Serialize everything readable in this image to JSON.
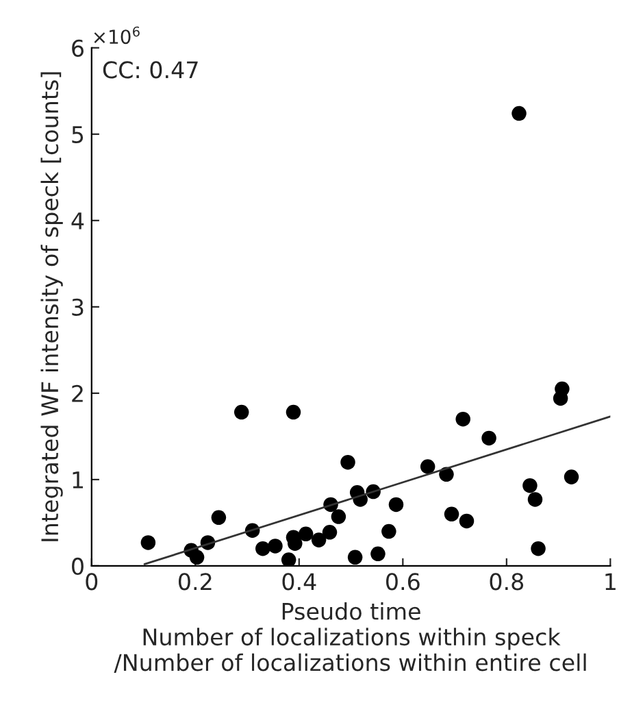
{
  "chart_data": {
    "type": "scatter",
    "xlabel": "Pseudo time\nNumber of localizations within speck\n/Number of localizations within entire cell",
    "ylabel": "Integrated WF intensity of speck [counts]",
    "annotations": [
      "×10$^{6}$",
      "CC: 0.47"
    ],
    "xlim": [
      0,
      1
    ],
    "ylim": [
      0,
      6
    ],
    "xticks": [
      0,
      0.2,
      0.4,
      0.6,
      0.8,
      1
    ],
    "yticks": [
      0,
      1,
      2,
      3,
      4,
      5,
      6
    ],
    "grid": false,
    "marker": "circle",
    "series": [
      {
        "color": "#000000",
        "x": [
          0.109,
          0.192,
          0.203,
          0.224,
          0.245,
          0.289,
          0.31,
          0.33,
          0.354,
          0.38,
          0.389,
          0.389,
          0.392,
          0.413,
          0.438,
          0.459,
          0.461,
          0.476,
          0.494,
          0.508,
          0.512,
          0.518,
          0.543,
          0.552,
          0.573,
          0.587,
          0.648,
          0.684,
          0.694,
          0.716,
          0.723,
          0.766,
          0.824,
          0.845,
          0.855,
          0.861,
          0.904,
          0.907,
          0.925
        ],
        "values": [
          0.27,
          0.18,
          0.1,
          0.27,
          0.56,
          1.78,
          0.41,
          0.2,
          0.23,
          0.07,
          1.78,
          0.33,
          0.26,
          0.37,
          0.3,
          0.39,
          0.71,
          0.57,
          1.2,
          0.1,
          0.85,
          0.77,
          0.86,
          0.14,
          0.4,
          0.71,
          1.15,
          1.06,
          0.6,
          1.7,
          0.52,
          1.48,
          5.24,
          0.93,
          0.77,
          0.2,
          1.94,
          2.05,
          1.03
        ]
      },
      {
        "type": "line",
        "color": "#333333",
        "x": [
          0.102,
          1.0
        ],
        "values": [
          0.02,
          1.73
        ],
        "line_style": "solid",
        "marker": "none"
      }
    ]
  }
}
